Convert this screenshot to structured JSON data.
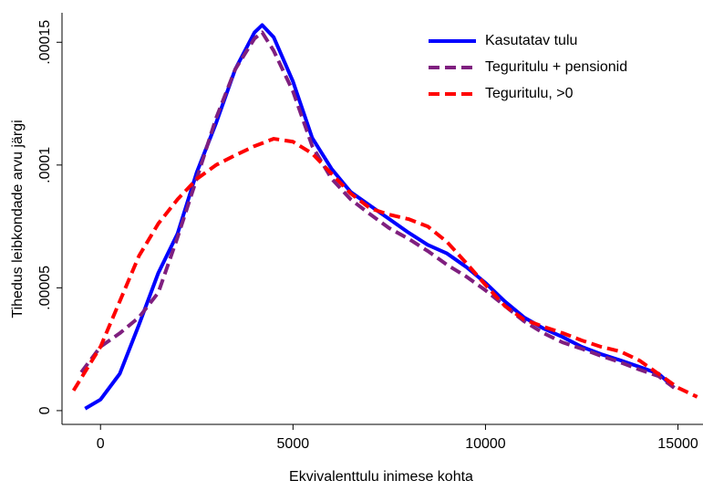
{
  "chart_data": {
    "type": "line",
    "xlabel": "Ekvivalenttulu inimese kohta",
    "ylabel": "Tihedus leibkondade arvu järgi",
    "xlim": [
      -1000,
      15650
    ],
    "xticks": [
      0,
      5000,
      10000,
      15000
    ],
    "ylim": [
      -5.6e-06,
      0.000162
    ],
    "yticks": [
      0,
      {
        "value": 5e-05,
        "label": ".00005"
      },
      {
        "value": 0.0001,
        "label": ".0001"
      },
      {
        "value": 0.00015,
        "label": ".00015"
      }
    ],
    "grid": false,
    "legend": "top-right",
    "series": [
      {
        "name": "Kasutatav tulu",
        "color": "#0000ff",
        "dash": false,
        "x": [
          -400,
          0,
          500,
          1000,
          1500,
          2000,
          2500,
          3000,
          3500,
          4000,
          4200,
          4500,
          5000,
          5500,
          6000,
          6500,
          7000,
          7500,
          8000,
          8500,
          9000,
          9500,
          10000,
          10500,
          11000,
          11500,
          12000,
          12500,
          13000,
          13500,
          14000,
          14500,
          14900
        ],
        "values": [
          8e-07,
          4.5e-06,
          1.5e-05,
          3.5e-05,
          5.6e-05,
          7.2e-05,
          9.7e-05,
          0.000117,
          0.000139,
          0.000154,
          0.000157,
          0.000152,
          0.000134,
          0.000111,
          9.85e-05,
          8.9e-05,
          8.35e-05,
          7.8e-05,
          7.25e-05,
          6.75e-05,
          6.4e-05,
          5.85e-05,
          5.2e-05,
          4.45e-05,
          3.8e-05,
          3.35e-05,
          3e-05,
          2.6e-05,
          2.3e-05,
          2.05e-05,
          1.78e-05,
          1.5e-05,
          9.3e-06
        ]
      },
      {
        "name": "Teguritulu + pensionid",
        "color": "#7f1f7f",
        "dash": true,
        "x": [
          -500,
          0,
          500,
          1000,
          1500,
          2000,
          2500,
          3000,
          3500,
          4000,
          4200,
          4500,
          5000,
          5500,
          6000,
          6500,
          7000,
          7500,
          8000,
          8500,
          9000,
          9500,
          10000,
          10500,
          11000,
          11500,
          12000,
          12500,
          13000,
          13500,
          14000,
          14500,
          14900
        ],
        "values": [
          1.56e-05,
          2.6e-05,
          3.15e-05,
          3.8e-05,
          4.8e-05,
          7.05e-05,
          9.45e-05,
          0.000119,
          0.000139,
          0.0001515,
          0.000154,
          0.0001465,
          0.00013,
          0.0001077,
          9.45e-05,
          8.6e-05,
          8e-05,
          7.43e-05,
          7e-05,
          6.5e-05,
          5.94e-05,
          5.46e-05,
          4.9e-05,
          4.27e-05,
          3.64e-05,
          3.16e-05,
          2.78e-05,
          2.52e-05,
          2.23e-05,
          1.97e-05,
          1.67e-05,
          1.4e-05,
          9.3e-06
        ]
      },
      {
        "name": "Teguritulu, >0",
        "color": "#ff0000",
        "dash": true,
        "x": [
          -700,
          0,
          500,
          1000,
          1500,
          2000,
          2500,
          3000,
          3500,
          4000,
          4500,
          5000,
          5500,
          6000,
          6500,
          7000,
          7500,
          8000,
          8500,
          9000,
          9500,
          10000,
          10500,
          11000,
          11500,
          12000,
          12500,
          13000,
          13500,
          14000,
          14500,
          15000,
          15500
        ],
        "values": [
          8.2e-06,
          2.6e-05,
          4.45e-05,
          6.3e-05,
          7.61e-05,
          8.6e-05,
          9.43e-05,
          0.0001,
          0.000104,
          0.0001077,
          0.0001107,
          0.0001095,
          0.0001047,
          9.65e-05,
          8.84e-05,
          8.24e-05,
          7.98e-05,
          7.8e-05,
          7.5e-05,
          6.87e-05,
          6.01e-05,
          5.12e-05,
          4.27e-05,
          3.71e-05,
          3.42e-05,
          3.16e-05,
          2.86e-05,
          2.6e-05,
          2.41e-05,
          2.04e-05,
          1.49e-05,
          9.3e-06,
          5.6e-06
        ]
      }
    ]
  }
}
